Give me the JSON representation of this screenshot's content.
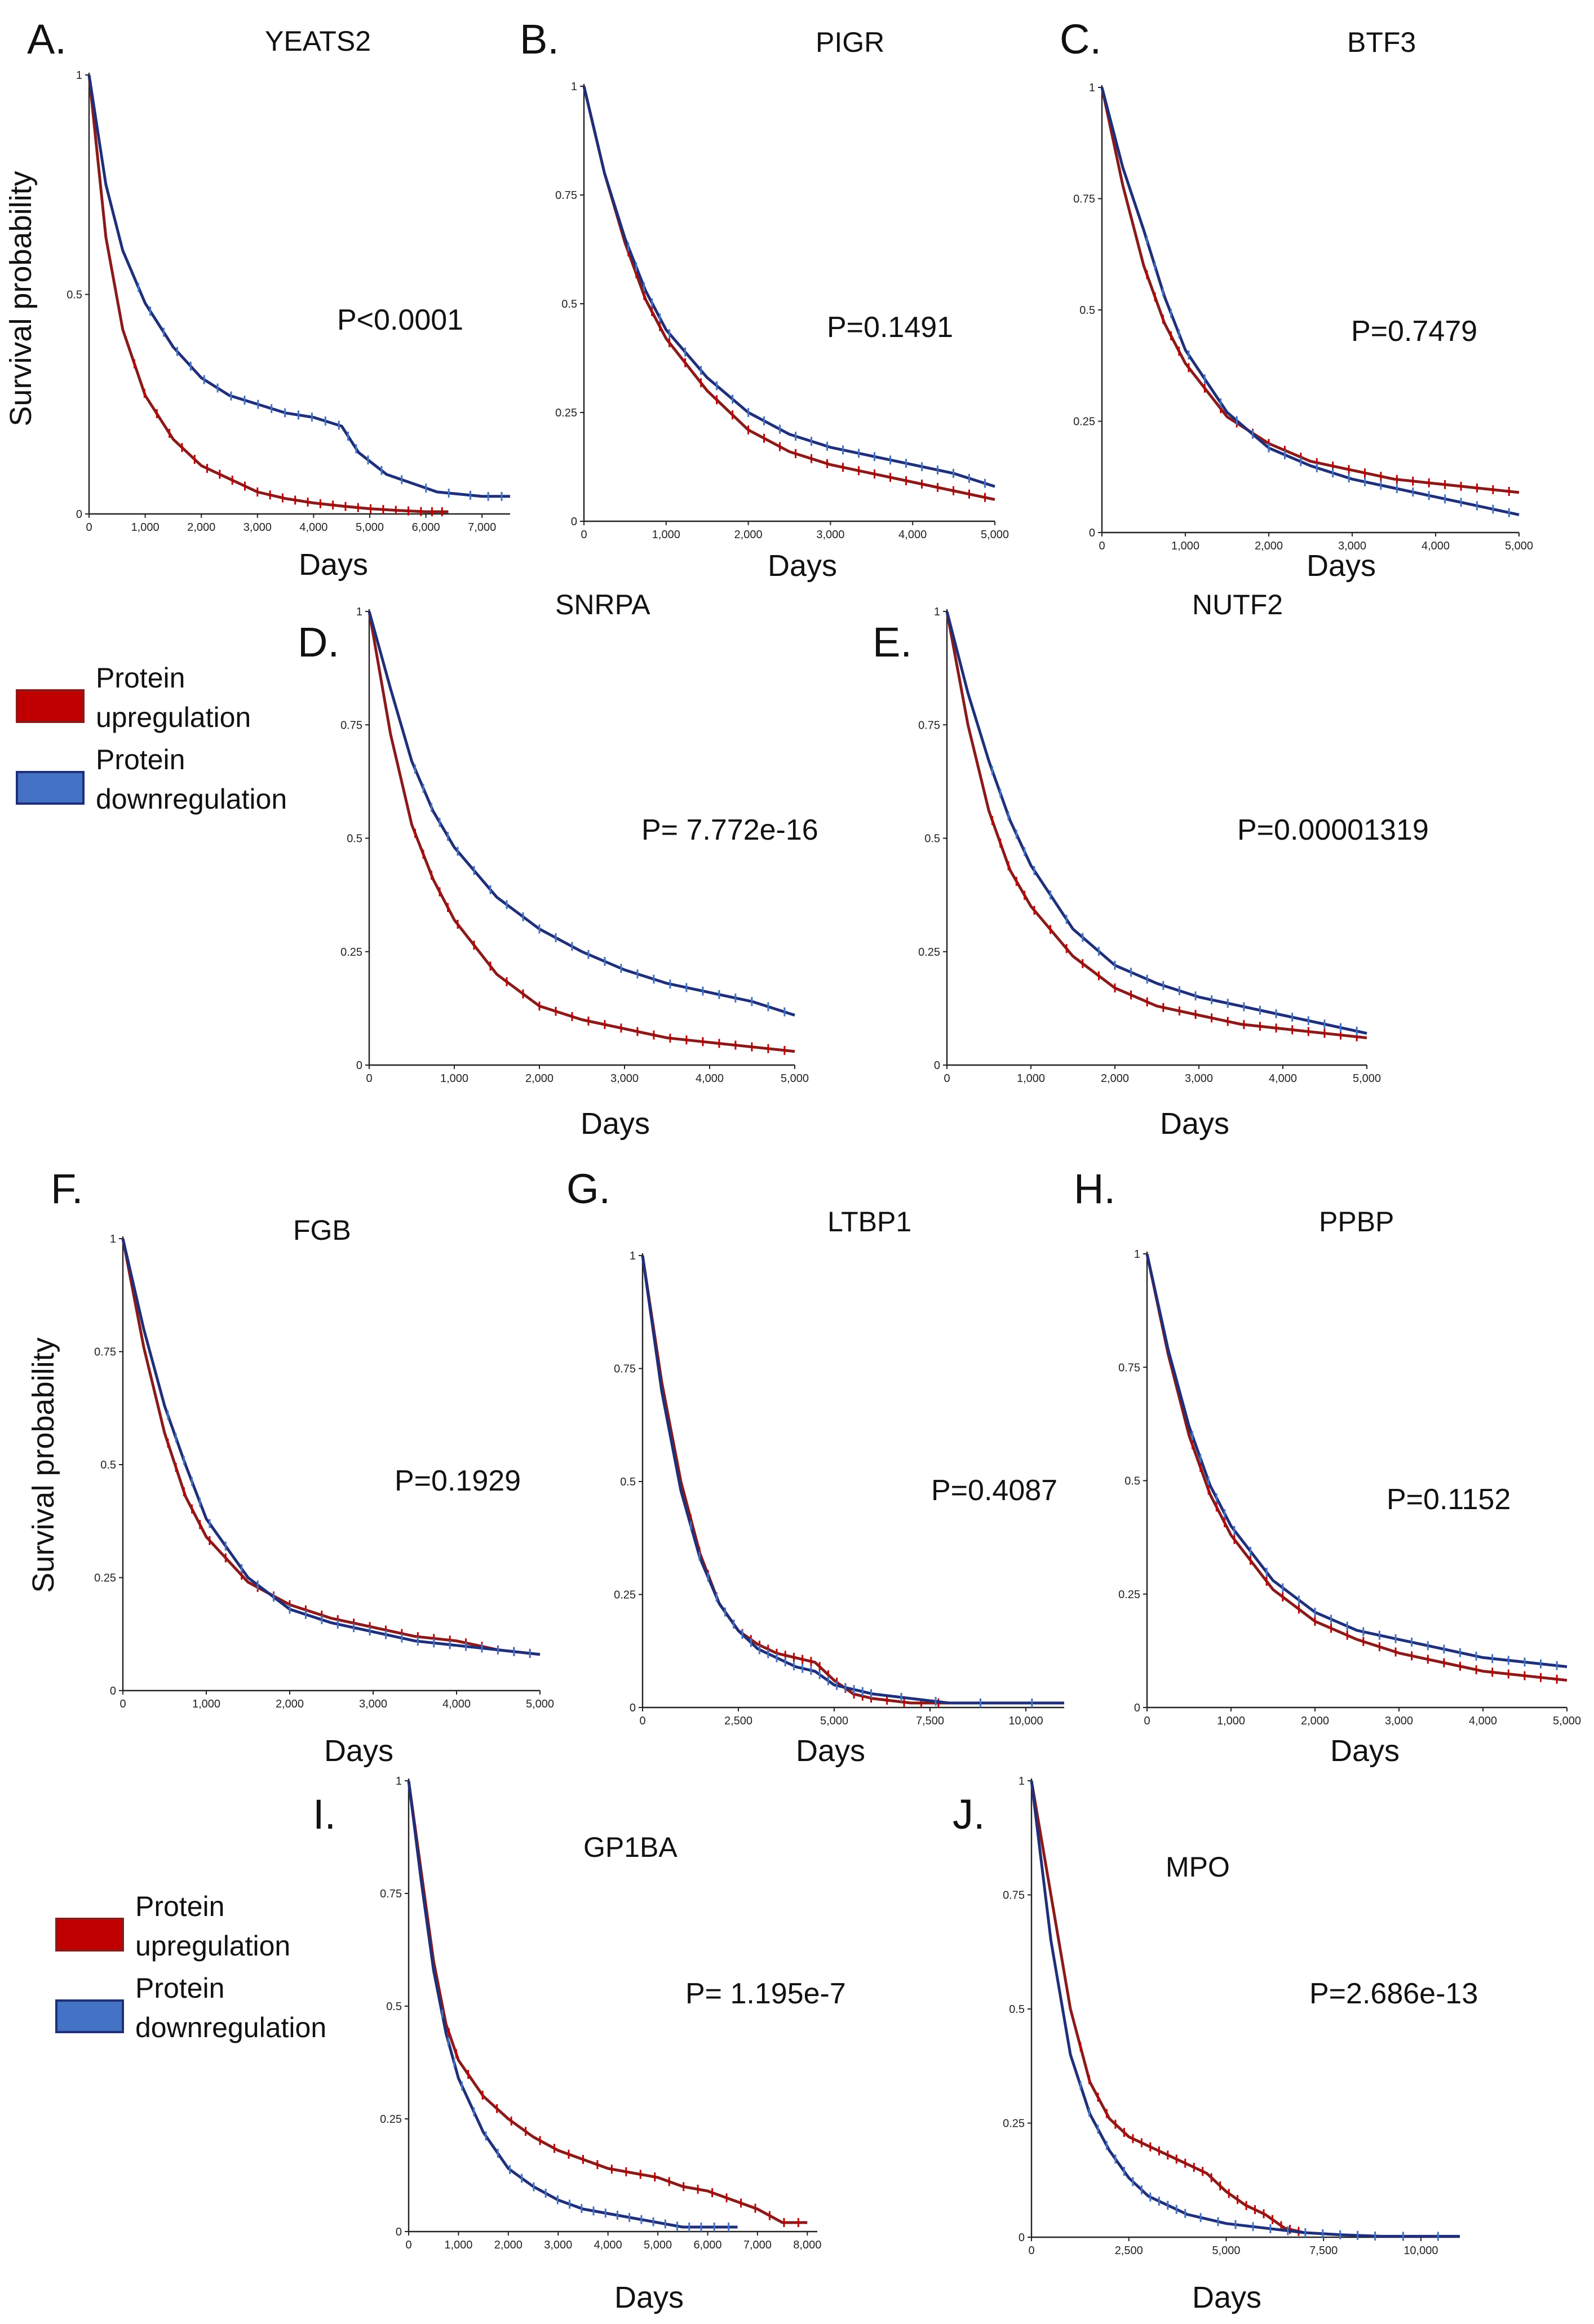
{
  "legend_labels": [
    {
      "line1": "Protein",
      "line2": "upregulation"
    },
    {
      "line1": "Protein",
      "line2": "downregulation"
    }
  ],
  "y_axis_label": "Survival probability",
  "colors": {
    "up": "#8b1a1a",
    "up_fill": "#c00000",
    "down": "#1f2f7a",
    "down_fill": "#4472c4"
  },
  "chart_data": [
    {
      "type": "line",
      "panel": "A.",
      "title": "YEATS2",
      "pvalue": "P<0.0001",
      "xlabel": "Days",
      "ylabel": "Survival probability",
      "xlim": [
        0,
        7500
      ],
      "ylim": [
        0,
        1
      ],
      "xticks": [
        "0",
        "1,000",
        "2,000",
        "3,000",
        "4,000",
        "5,000",
        "6,000",
        "7,000"
      ],
      "yticks": [
        "0",
        "0.5",
        "1"
      ],
      "series": [
        {
          "name": "Protein upregulation",
          "x": [
            0,
            300,
            600,
            1000,
            1500,
            2000,
            2500,
            3000,
            3500,
            4000,
            4500,
            5000,
            5500,
            6000,
            6400
          ],
          "y": [
            1,
            0.63,
            0.42,
            0.27,
            0.17,
            0.11,
            0.08,
            0.05,
            0.035,
            0.025,
            0.018,
            0.012,
            0.008,
            0.005,
            0.005
          ]
        },
        {
          "name": "Protein downregulation",
          "x": [
            0,
            300,
            600,
            1000,
            1500,
            2000,
            2500,
            3000,
            3500,
            4000,
            4500,
            4800,
            5300,
            6200,
            7000,
            7500
          ],
          "y": [
            1,
            0.75,
            0.6,
            0.48,
            0.38,
            0.31,
            0.27,
            0.25,
            0.23,
            0.22,
            0.2,
            0.14,
            0.09,
            0.05,
            0.04,
            0.04
          ]
        }
      ]
    },
    {
      "type": "line",
      "panel": "B.",
      "title": "PIGR",
      "pvalue": "P=0.1491",
      "xlabel": "Days",
      "ylabel": "",
      "xlim": [
        0,
        5000
      ],
      "ylim": [
        0,
        1
      ],
      "xticks": [
        "0",
        "1,000",
        "2,000",
        "3,000",
        "4,000",
        "5,000"
      ],
      "yticks": [
        "0",
        "0.25",
        "0.5",
        "0.75",
        "1"
      ],
      "series": [
        {
          "name": "Protein upregulation",
          "x": [
            0,
            250,
            500,
            750,
            1000,
            1500,
            2000,
            2500,
            3000,
            3500,
            4000,
            4500,
            5000
          ],
          "y": [
            1,
            0.8,
            0.64,
            0.51,
            0.42,
            0.3,
            0.21,
            0.16,
            0.13,
            0.11,
            0.09,
            0.07,
            0.05
          ]
        },
        {
          "name": "Protein downregulation",
          "x": [
            0,
            250,
            500,
            750,
            1000,
            1500,
            2000,
            2500,
            3000,
            3500,
            4000,
            4500,
            5000
          ],
          "y": [
            1,
            0.8,
            0.65,
            0.53,
            0.44,
            0.33,
            0.25,
            0.2,
            0.17,
            0.15,
            0.13,
            0.11,
            0.08
          ]
        }
      ]
    },
    {
      "type": "line",
      "panel": "C.",
      "title": "BTF3",
      "pvalue": "P=0.7479",
      "xlabel": "Days",
      "ylabel": "",
      "xlim": [
        0,
        5000
      ],
      "ylim": [
        0,
        1
      ],
      "xticks": [
        "0",
        "1,000",
        "2,000",
        "3,000",
        "4,000",
        "5,000"
      ],
      "yticks": [
        "0",
        "0.25",
        "0.5",
        "0.75",
        "1"
      ],
      "series": [
        {
          "name": "Protein upregulation",
          "x": [
            0,
            250,
            500,
            750,
            1000,
            1500,
            2000,
            2500,
            3000,
            3500,
            4000,
            4500,
            5000
          ],
          "y": [
            1,
            0.78,
            0.6,
            0.47,
            0.38,
            0.26,
            0.2,
            0.16,
            0.14,
            0.12,
            0.11,
            0.1,
            0.09
          ]
        },
        {
          "name": "Protein downregulation",
          "x": [
            0,
            250,
            500,
            750,
            1000,
            1500,
            2000,
            2500,
            3000,
            3500,
            4000,
            4500,
            5000
          ],
          "y": [
            1,
            0.82,
            0.68,
            0.53,
            0.41,
            0.27,
            0.19,
            0.15,
            0.12,
            0.1,
            0.08,
            0.06,
            0.04
          ]
        }
      ]
    },
    {
      "type": "line",
      "panel": "D.",
      "title": "SNRPA",
      "pvalue": "P= 7.772e-16",
      "xlabel": "Days",
      "ylabel": "",
      "xlim": [
        0,
        5000
      ],
      "ylim": [
        0,
        1
      ],
      "xticks": [
        "0",
        "1,000",
        "2,000",
        "3,000",
        "4,000",
        "5,000"
      ],
      "yticks": [
        "0",
        "0.25",
        "0.5",
        "0.75",
        "1"
      ],
      "series": [
        {
          "name": "Protein upregulation",
          "x": [
            0,
            250,
            500,
            750,
            1000,
            1500,
            2000,
            2500,
            3000,
            3500,
            4000,
            4500,
            5000
          ],
          "y": [
            1,
            0.73,
            0.53,
            0.41,
            0.32,
            0.2,
            0.13,
            0.1,
            0.08,
            0.06,
            0.05,
            0.04,
            0.03
          ]
        },
        {
          "name": "Protein downregulation",
          "x": [
            0,
            250,
            500,
            750,
            1000,
            1500,
            2000,
            2500,
            3000,
            3500,
            4000,
            4500,
            5000
          ],
          "y": [
            1,
            0.83,
            0.67,
            0.56,
            0.48,
            0.37,
            0.3,
            0.25,
            0.21,
            0.18,
            0.16,
            0.14,
            0.11
          ]
        }
      ]
    },
    {
      "type": "line",
      "panel": "E.",
      "title": "NUTF2",
      "pvalue": "P=0.00001319",
      "xlabel": "Days",
      "ylabel": "",
      "xlim": [
        0,
        5000
      ],
      "ylim": [
        0,
        1
      ],
      "xticks": [
        "0",
        "1,000",
        "2,000",
        "3,000",
        "4,000",
        "5,000"
      ],
      "yticks": [
        "0",
        "0.25",
        "0.5",
        "0.75",
        "1"
      ],
      "series": [
        {
          "name": "Protein upregulation",
          "x": [
            0,
            250,
            500,
            750,
            1000,
            1500,
            2000,
            2500,
            3000,
            3500,
            4000,
            4500,
            5000
          ],
          "y": [
            1,
            0.75,
            0.56,
            0.43,
            0.35,
            0.24,
            0.17,
            0.13,
            0.11,
            0.09,
            0.08,
            0.07,
            0.06
          ]
        },
        {
          "name": "Protein downregulation",
          "x": [
            0,
            250,
            500,
            750,
            1000,
            1500,
            2000,
            2500,
            3000,
            3500,
            4000,
            4500,
            5000
          ],
          "y": [
            1,
            0.82,
            0.67,
            0.54,
            0.44,
            0.3,
            0.22,
            0.18,
            0.15,
            0.13,
            0.11,
            0.09,
            0.07
          ]
        }
      ]
    },
    {
      "type": "line",
      "panel": "F.",
      "title": "FGB",
      "pvalue": "P=0.1929",
      "xlabel": "Days",
      "ylabel": "Survival probability",
      "xlim": [
        0,
        5000
      ],
      "ylim": [
        0,
        1
      ],
      "xticks": [
        "0",
        "1,000",
        "2,000",
        "3,000",
        "4,000",
        "5,000"
      ],
      "yticks": [
        "0",
        "0.25",
        "0.5",
        "0.75",
        "1"
      ],
      "series": [
        {
          "name": "Protein upregulation",
          "x": [
            0,
            250,
            500,
            750,
            1000,
            1500,
            2000,
            2500,
            3000,
            3500,
            4000,
            4500,
            5000
          ],
          "y": [
            1,
            0.76,
            0.57,
            0.43,
            0.34,
            0.24,
            0.19,
            0.16,
            0.14,
            0.12,
            0.11,
            0.09,
            0.08
          ]
        },
        {
          "name": "Protein downregulation",
          "x": [
            0,
            250,
            500,
            750,
            1000,
            1500,
            2000,
            2500,
            3000,
            3500,
            4000,
            4500,
            5000
          ],
          "y": [
            1,
            0.8,
            0.63,
            0.5,
            0.38,
            0.25,
            0.18,
            0.15,
            0.13,
            0.11,
            0.1,
            0.09,
            0.08
          ]
        }
      ]
    },
    {
      "type": "line",
      "panel": "G.",
      "title": "LTBP1",
      "pvalue": "P=0.4087",
      "xlabel": "Days",
      "ylabel": "",
      "xlim": [
        0,
        11000
      ],
      "ylim": [
        0,
        1
      ],
      "xticks": [
        "0",
        "2,500",
        "5,000",
        "7,500",
        "10,000"
      ],
      "yticks": [
        "0",
        "0.25",
        "0.5",
        "0.75",
        "1"
      ],
      "series": [
        {
          "name": "Protein upregulation",
          "x": [
            0,
            500,
            1000,
            1500,
            2000,
            2500,
            3000,
            3500,
            4000,
            4500,
            5000,
            5500,
            6000,
            7000,
            8000
          ],
          "y": [
            1,
            0.72,
            0.5,
            0.34,
            0.23,
            0.17,
            0.14,
            0.12,
            0.11,
            0.1,
            0.06,
            0.03,
            0.02,
            0.01,
            0.01
          ]
        },
        {
          "name": "Protein downregulation",
          "x": [
            0,
            500,
            1000,
            1500,
            2000,
            2500,
            3000,
            3500,
            4000,
            4500,
            5000,
            5500,
            6000,
            8000,
            11000
          ],
          "y": [
            1,
            0.7,
            0.48,
            0.33,
            0.23,
            0.17,
            0.13,
            0.11,
            0.09,
            0.08,
            0.05,
            0.04,
            0.03,
            0.01,
            0.01
          ]
        }
      ]
    },
    {
      "type": "line",
      "panel": "H.",
      "title": "PPBP",
      "pvalue": "P=0.1152",
      "xlabel": "Days",
      "ylabel": "",
      "xlim": [
        0,
        5000
      ],
      "ylim": [
        0,
        1
      ],
      "xticks": [
        "0",
        "1,000",
        "2,000",
        "3,000",
        "4,000",
        "5,000"
      ],
      "yticks": [
        "0",
        "0.25",
        "0.5",
        "0.75",
        "1"
      ],
      "series": [
        {
          "name": "Protein upregulation",
          "x": [
            0,
            250,
            500,
            750,
            1000,
            1500,
            2000,
            2500,
            3000,
            3500,
            4000,
            4500,
            5000
          ],
          "y": [
            1,
            0.78,
            0.6,
            0.47,
            0.38,
            0.26,
            0.19,
            0.15,
            0.12,
            0.1,
            0.08,
            0.07,
            0.06
          ]
        },
        {
          "name": "Protein downregulation",
          "x": [
            0,
            250,
            500,
            750,
            1000,
            1500,
            2000,
            2500,
            3000,
            3500,
            4000,
            4500,
            5000
          ],
          "y": [
            1,
            0.79,
            0.62,
            0.49,
            0.4,
            0.28,
            0.21,
            0.17,
            0.15,
            0.13,
            0.11,
            0.1,
            0.09
          ]
        }
      ]
    },
    {
      "type": "line",
      "panel": "I.",
      "title": "GP1BA",
      "pvalue": "P= 1.195e-7",
      "xlabel": "Days",
      "ylabel": "",
      "xlim": [
        0,
        8200
      ],
      "ylim": [
        0,
        1
      ],
      "xticks": [
        "0",
        "1,000",
        "2,000",
        "3,000",
        "4,000",
        "5,000",
        "6,000",
        "7,000",
        "8,000"
      ],
      "yticks": [
        "0",
        "0.25",
        "0.5",
        "0.75",
        "1"
      ],
      "series": [
        {
          "name": "Protein upregulation",
          "x": [
            0,
            250,
            500,
            750,
            1000,
            1500,
            2000,
            2500,
            3000,
            3500,
            4000,
            4500,
            5000,
            5500,
            6000,
            6500,
            7000,
            7500,
            8000
          ],
          "y": [
            1,
            0.8,
            0.6,
            0.46,
            0.38,
            0.3,
            0.25,
            0.21,
            0.18,
            0.16,
            0.14,
            0.13,
            0.12,
            0.1,
            0.09,
            0.07,
            0.05,
            0.02,
            0.02
          ]
        },
        {
          "name": "Protein downregulation",
          "x": [
            0,
            250,
            500,
            750,
            1000,
            1500,
            2000,
            2500,
            3000,
            3500,
            4000,
            4500,
            5000,
            5500,
            6000,
            6600
          ],
          "y": [
            1,
            0.78,
            0.58,
            0.44,
            0.34,
            0.22,
            0.14,
            0.1,
            0.07,
            0.05,
            0.04,
            0.03,
            0.02,
            0.01,
            0.01,
            0.01
          ]
        }
      ]
    },
    {
      "type": "line",
      "panel": "J.",
      "title": "MPO",
      "pvalue": "P=2.686e-13",
      "xlabel": "Days",
      "ylabel": "",
      "xlim": [
        0,
        11000
      ],
      "ylim": [
        0,
        1
      ],
      "xticks": [
        "0",
        "2,500",
        "5,000",
        "7,500",
        "10,000"
      ],
      "yticks": [
        "0",
        "0.25",
        "0.5",
        "0.75",
        "1"
      ],
      "series": [
        {
          "name": "Protein upregulation",
          "x": [
            0,
            500,
            1000,
            1500,
            2000,
            2500,
            3000,
            3500,
            4000,
            4500,
            5000,
            5500,
            6000,
            6500,
            7000
          ],
          "y": [
            1,
            0.75,
            0.5,
            0.34,
            0.26,
            0.22,
            0.2,
            0.18,
            0.16,
            0.14,
            0.1,
            0.07,
            0.05,
            0.02,
            0.01
          ]
        },
        {
          "name": "Protein downregulation",
          "x": [
            0,
            500,
            1000,
            1500,
            2000,
            2500,
            3000,
            3500,
            4000,
            5000,
            6000,
            7000,
            8000,
            9000,
            11000
          ],
          "y": [
            1,
            0.65,
            0.4,
            0.27,
            0.19,
            0.13,
            0.09,
            0.07,
            0.05,
            0.03,
            0.02,
            0.01,
            0.005,
            0.002,
            0.002
          ]
        }
      ]
    }
  ]
}
